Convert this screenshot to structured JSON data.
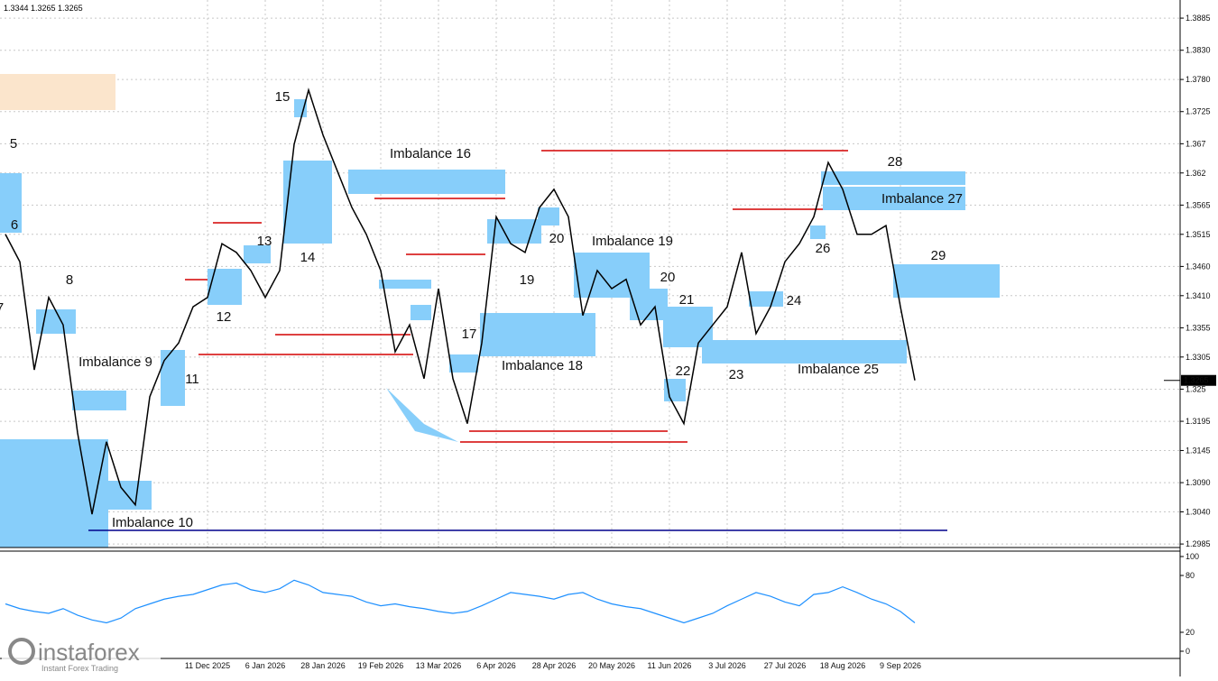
{
  "chart_data": [
    {
      "type": "line",
      "title": "1.3344 1.3265 1.3265",
      "color": "#000000",
      "categories": [
        null,
        null,
        null,
        null,
        null,
        null,
        null,
        null,
        null,
        null,
        null,
        null,
        null,
        null,
        "11 Dec 2025",
        null,
        null,
        null,
        "6 Jan 2026",
        null,
        null,
        null,
        "28 Jan 2026",
        null,
        null,
        null,
        "19 Feb 2026",
        null,
        null,
        null,
        "13 Mar 2026",
        null,
        null,
        null,
        "6 Apr 2026",
        null,
        null,
        null,
        "28 Apr 2026",
        null,
        null,
        null,
        "20 May 2026",
        null,
        null,
        null,
        "11 Jun 2026",
        null,
        null,
        null,
        "3 Jul 2026",
        null,
        null,
        null,
        "27 Jul 2026",
        null,
        null,
        null,
        "18 Aug 2026",
        null,
        null,
        null,
        "9 Sep 2026",
        null
      ],
      "values": [
        1.3515,
        1.3468,
        1.3283,
        1.3407,
        1.336,
        1.3175,
        1.3036,
        1.316,
        1.3082,
        1.3052,
        1.3237,
        1.3299,
        1.3329,
        1.3391,
        1.3407,
        1.3499,
        1.3484,
        1.3453,
        1.3407,
        1.3453,
        1.3669,
        1.3762,
        1.3685,
        1.3623,
        1.3561,
        1.3515,
        1.3453,
        1.3314,
        1.336,
        1.3268,
        1.3422,
        1.3268,
        1.3191,
        1.3329,
        1.3545,
        1.3499,
        1.3484,
        1.3561,
        1.3592,
        1.3545,
        1.3376,
        1.3453,
        1.3422,
        1.3438,
        1.336,
        1.3391,
        1.3237,
        1.3191,
        1.3329,
        1.336,
        1.3391,
        1.3484,
        1.3345,
        1.3391,
        1.3468,
        1.3499,
        1.3545,
        1.3638,
        1.3592,
        1.3515,
        1.3515,
        1.353,
        1.3391,
        1.3265
      ],
      "last_price": 1.3265,
      "ylim": [
        1.2979,
        1.3916
      ],
      "yticks": [
        1.3885,
        {
          "value": 1.383,
          "label": "1.3830"
        },
        {
          "value": 1.378,
          "label": "1.3780"
        },
        1.3725,
        1.367,
        1.362,
        1.3565,
        1.3515,
        {
          "value": 1.346,
          "label": "1.3460"
        },
        {
          "value": 1.341,
          "label": "1.3410"
        },
        1.3355,
        1.3305,
        1.325,
        1.3195,
        1.3145,
        {
          "value": 1.309,
          "label": "1.3090"
        },
        {
          "value": 1.304,
          "label": "1.3040"
        },
        1.2985
      ],
      "grid": true,
      "annotations": [
        "5",
        "6",
        "7",
        "8",
        "Imbalance 9",
        "Imbalance 10",
        "11",
        "12",
        "13",
        "14",
        "15",
        "Imbalance 16",
        "17",
        "Imbalance 18",
        "19",
        "20",
        "Imbalance 19",
        "20",
        "21",
        "22",
        "23",
        "24",
        "Imbalance 25",
        "26",
        "Imbalance 27",
        "28",
        "29"
      ]
    },
    {
      "type": "line",
      "color": "#1e90ff",
      "values": [
        50,
        45,
        42,
        40,
        45,
        38,
        33,
        30,
        35,
        45,
        50,
        55,
        58,
        60,
        65,
        70,
        72,
        65,
        62,
        66,
        75,
        70,
        62,
        60,
        58,
        52,
        48,
        50,
        47,
        45,
        42,
        40,
        42,
        48,
        55,
        62,
        60,
        58,
        55,
        60,
        62,
        55,
        50,
        47,
        45,
        40,
        35,
        30,
        35,
        40,
        48,
        55,
        62,
        58,
        52,
        48,
        60,
        62,
        68,
        62,
        55,
        50,
        42,
        30
      ],
      "ylim": [
        0,
        100
      ],
      "yticks": [
        100,
        80,
        20,
        0
      ]
    }
  ],
  "branding": {
    "logo": "instaforex",
    "tagline": "Instant Forex Trading"
  }
}
